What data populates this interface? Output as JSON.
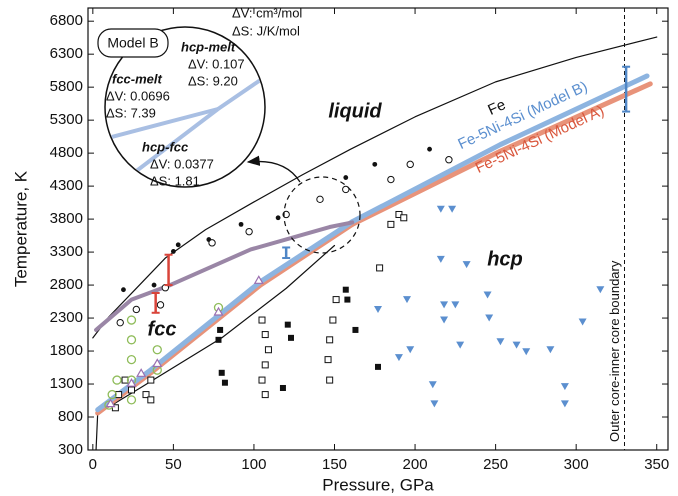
{
  "chart_data": {
    "type": "scatter",
    "xlabel": "Pressure, GPa",
    "ylabel": "Temperature, K",
    "xlim": [
      -3,
      357
    ],
    "ylim": [
      300,
      7000
    ],
    "xticks": [
      0,
      50,
      100,
      150,
      200,
      250,
      300,
      350
    ],
    "yticks": [
      300,
      800,
      1300,
      1800,
      2300,
      2800,
      3300,
      3800,
      4300,
      4800,
      5300,
      5800,
      6300,
      6800
    ],
    "reference_line": {
      "x": 330,
      "label": "Outer core-inner core boundary"
    },
    "phase_labels": [
      "liquid",
      "hcp",
      "fcc"
    ],
    "inset": {
      "title": "Model B",
      "units": [
        "ΔV: cm³/mol",
        "ΔS: J/K/mol"
      ],
      "boundaries": [
        {
          "name": "hcp-melt",
          "dV": "ΔV: 0.107",
          "dS": "ΔS: 9.20"
        },
        {
          "name": "fcc-melt",
          "dV": "ΔV: 0.0696",
          "dS": "ΔS: 7.39"
        },
        {
          "name": "hcp-fcc",
          "dV": "ΔV: 0.0377",
          "dS": "ΔS: 1.81"
        }
      ]
    },
    "series": [
      {
        "type": "line",
        "color": "#111111",
        "width": 1.2,
        "x": [
          2,
          3,
          30,
          80,
          120,
          150
        ],
        "values": [
          300,
          850,
          1250,
          2000,
          2750,
          3400
        ]
      },
      {
        "type": "line",
        "name": "Fe",
        "color": "#111111",
        "width": 1.2,
        "x": [
          0,
          10,
          25,
          45,
          70,
          100,
          130,
          160,
          200,
          250,
          300,
          350
        ],
        "values": [
          2000,
          2320,
          2700,
          3210,
          3640,
          4060,
          4470,
          4860,
          5350,
          5880,
          6250,
          6560
        ]
      },
      {
        "type": "line",
        "name": "Fe-5Ni-4Si (Model A)",
        "color": "#e8937a",
        "width": 5,
        "x": [
          161,
          253,
          346
        ],
        "values": [
          3720,
          4830,
          5850
        ]
      },
      {
        "type": "line",
        "color": "#e8937a",
        "width": 5,
        "x": [
          3,
          36,
          104,
          161
        ],
        "values": [
          860,
          1470,
          2800,
          3720
        ]
      },
      {
        "type": "line",
        "name": "Fe-5Ni-4Si (Model B)",
        "color": "#8db4e0",
        "width": 5,
        "x": [
          161,
          253,
          344
        ],
        "values": [
          3760,
          4930,
          5970
        ]
      },
      {
        "type": "line",
        "color": "#8db4e0",
        "width": 5,
        "x": [
          3,
          36,
          104,
          161
        ],
        "values": [
          910,
          1515,
          2850,
          3760
        ]
      },
      {
        "type": "line",
        "color": "#9a86a6",
        "width": 4,
        "x": [
          2,
          24,
          48,
          98,
          147,
          161
        ],
        "values": [
          2120,
          2580,
          2800,
          3340,
          3680,
          3750
        ]
      },
      {
        "type": "scatter",
        "marker": "dot",
        "color": "#111111",
        "x": [
          50,
          53,
          72,
          92,
          115,
          157,
          175,
          209,
          19,
          38
        ],
        "values": [
          3310,
          3410,
          3490,
          3720,
          3820,
          4430,
          4630,
          4860,
          2730,
          2800
        ]
      },
      {
        "type": "scatter",
        "marker": "open-circle",
        "color": "#111111",
        "x": [
          17,
          27,
          42,
          45,
          74,
          97,
          120,
          141,
          157,
          185,
          197,
          221
        ],
        "values": [
          2230,
          2430,
          2500,
          2760,
          3440,
          3610,
          3870,
          4100,
          4250,
          4400,
          4630,
          4700
        ]
      },
      {
        "type": "scatter",
        "marker": "open-square",
        "color": "#111111",
        "x": [
          14,
          16,
          20,
          24,
          33,
          36,
          36,
          107,
          105,
          107,
          109,
          107,
          105,
          147,
          146,
          147,
          149,
          151,
          178,
          185,
          190,
          193
        ],
        "values": [
          940,
          1140,
          1360,
          1210,
          1140,
          1360,
          1060,
          1140,
          1360,
          1590,
          1820,
          2050,
          2270,
          1360,
          1670,
          1970,
          2270,
          2580,
          3060,
          3720,
          3870,
          3820
        ]
      },
      {
        "type": "scatter",
        "marker": "filled-square",
        "color": "#111111",
        "x": [
          79,
          78,
          80,
          82,
          121,
          123,
          118,
          158,
          157,
          163,
          177
        ],
        "values": [
          2120,
          1970,
          1470,
          1320,
          2200,
          2000,
          1240,
          2580,
          2730,
          2120,
          1560
        ]
      },
      {
        "type": "scatter",
        "marker": "triangle-down",
        "color": "#5b8fcf",
        "x": [
          177,
          190,
          195,
          197,
          211,
          212,
          216,
          223,
          216,
          218,
          218,
          225,
          228,
          245,
          246,
          263,
          269,
          284,
          293,
          293,
          304,
          315,
          232,
          253
        ],
        "values": [
          2430,
          1700,
          2580,
          1820,
          1290,
          1000,
          3950,
          3950,
          3190,
          2270,
          2500,
          2500,
          1890,
          2650,
          2300,
          1890,
          1790,
          1820,
          1260,
          1000,
          2240,
          2730,
          3110,
          1940
        ]
      },
      {
        "type": "scatter",
        "marker": "green-circle",
        "color": "#8fbc5a",
        "x": [
          10,
          12,
          15,
          24,
          24,
          24,
          24,
          24,
          40,
          40,
          78
        ],
        "values": [
          980,
          1140,
          1360,
          1060,
          1360,
          1670,
          1970,
          2270,
          1820,
          1510,
          2460
        ]
      },
      {
        "type": "scatter",
        "marker": "triangle-up",
        "color": "#9b6fb0",
        "x": [
          11,
          24,
          30,
          40,
          78,
          103
        ],
        "values": [
          1010,
          1320,
          1470,
          1620,
          2400,
          2880
        ]
      },
      {
        "type": "errorbar",
        "color": "#4f86c6",
        "x": [
          331,
          120
        ],
        "values": [
          5770,
          3290
        ],
        "errors": [
          340,
          80
        ]
      },
      {
        "type": "errorbar",
        "color": "#d9443a",
        "x": [
          47,
          39
        ],
        "values": [
          3030,
          2530
        ],
        "errors": [
          230,
          150
        ]
      }
    ]
  }
}
